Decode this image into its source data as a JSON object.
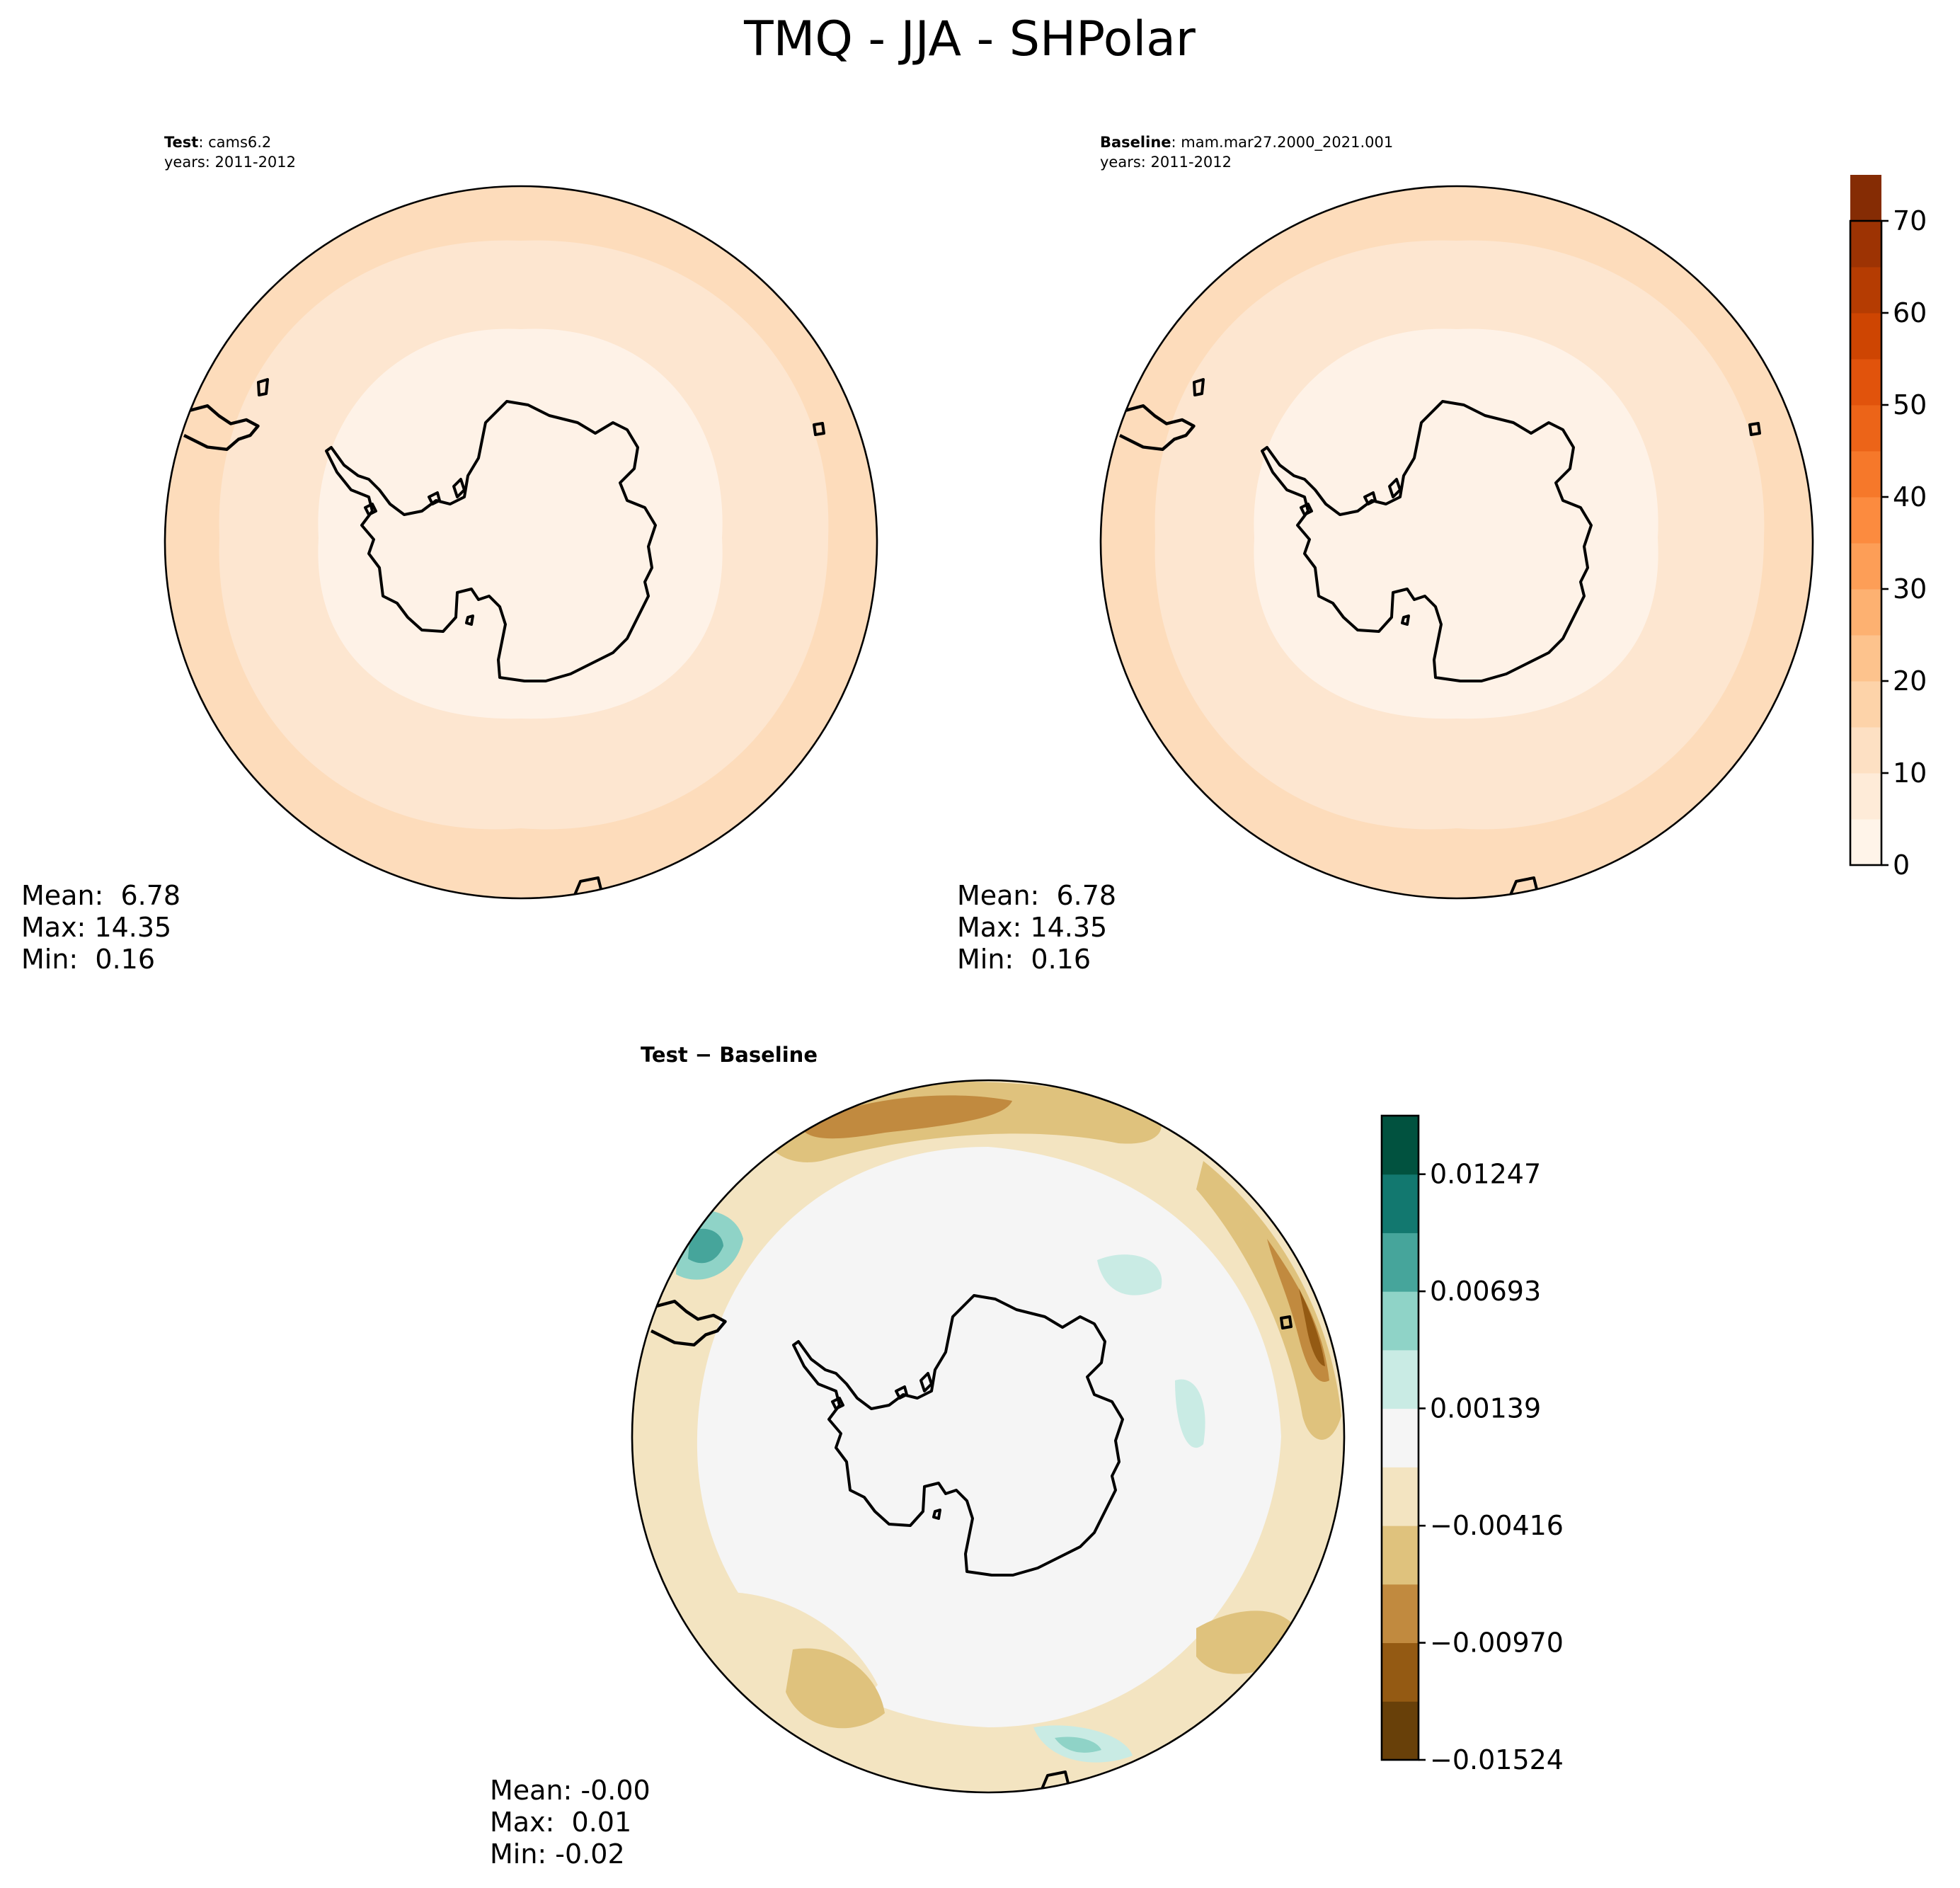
{
  "figure": {
    "title": "TMQ - JJA - SHPolar"
  },
  "panels": {
    "test": {
      "label_bold": "Test",
      "label_rest": ": cams6.2",
      "years": "years: 2011-2012",
      "stats": {
        "mean": "Mean:  6.78",
        "max": "Max: 14.35",
        "min": "Min:  0.16"
      }
    },
    "baseline": {
      "label_bold": "Baseline",
      "label_rest": ": mam.mar27.2000_2021.001",
      "years": "years: 2011-2012",
      "stats": {
        "mean": "Mean:  6.78",
        "max": "Max: 14.35",
        "min": "Min:  0.16"
      }
    },
    "diff": {
      "title": "Test − Baseline",
      "stats": {
        "mean": "Mean: -0.00",
        "max": "Max:  0.01",
        "min": "Min: -0.02"
      }
    }
  },
  "colorbars": {
    "main": {
      "ticks": [
        "0",
        "10",
        "20",
        "30",
        "40",
        "50",
        "60",
        "70"
      ],
      "levels": [
        0,
        5,
        10,
        15,
        20,
        25,
        30,
        35,
        40,
        45,
        50,
        55,
        60,
        65,
        70
      ],
      "colors": [
        "#fff4e9",
        "#feebd8",
        "#fde0c3",
        "#fdd3a9",
        "#fdc38d",
        "#fdb171",
        "#fd9e57",
        "#fc8b3f",
        "#f6782a",
        "#ec6418",
        "#e1530c",
        "#ce4502",
        "#b53c02",
        "#9d3303",
        "#852c04"
      ]
    },
    "diff": {
      "ticks": [
        "0.01247",
        "0.00693",
        "0.00139",
        "−0.00416",
        "−0.00970",
        "−0.01524"
      ],
      "tick_values": [
        0.01247,
        0.00693,
        0.00139,
        -0.00416,
        -0.0097,
        -0.01524
      ],
      "range": [
        -0.01524,
        0.01524
      ],
      "colors": [
        "#684009",
        "#945a13",
        "#c18a3f",
        "#dfc27d",
        "#f3e4c1",
        "#f5f5f5",
        "#c9ebe4",
        "#8fd3c7",
        "#46a59b",
        "#12786f",
        "#01523f"
      ]
    }
  },
  "map_fields": {
    "outer_ring_color": "#fddcbb",
    "middle_ring_color": "#fde6d0",
    "inner_ring_color": "#fef2e7",
    "diff_background_color": "#f5f5f5"
  },
  "chart_data": [
    {
      "type": "heatmap",
      "title": "Test: cams6.2",
      "subtitle": "years: 2011-2012",
      "colorbar_range": [
        0,
        70
      ],
      "stats": {
        "mean": 6.78,
        "max": 14.35,
        "min": 0.16
      }
    },
    {
      "type": "heatmap",
      "title": "Baseline: mam.mar27.2000_2021.001",
      "subtitle": "years: 2011-2012",
      "colorbar_range": [
        0,
        70
      ],
      "stats": {
        "mean": 6.78,
        "max": 14.35,
        "min": 0.16
      }
    },
    {
      "type": "heatmap",
      "title": "Test − Baseline",
      "colorbar_ticks": [
        0.01247,
        0.00693,
        0.00139,
        -0.00416,
        -0.0097,
        -0.01524
      ],
      "colorbar_range": [
        -0.01524,
        0.01524
      ],
      "stats": {
        "mean": -0.0,
        "max": 0.01,
        "min": -0.02
      }
    }
  ]
}
